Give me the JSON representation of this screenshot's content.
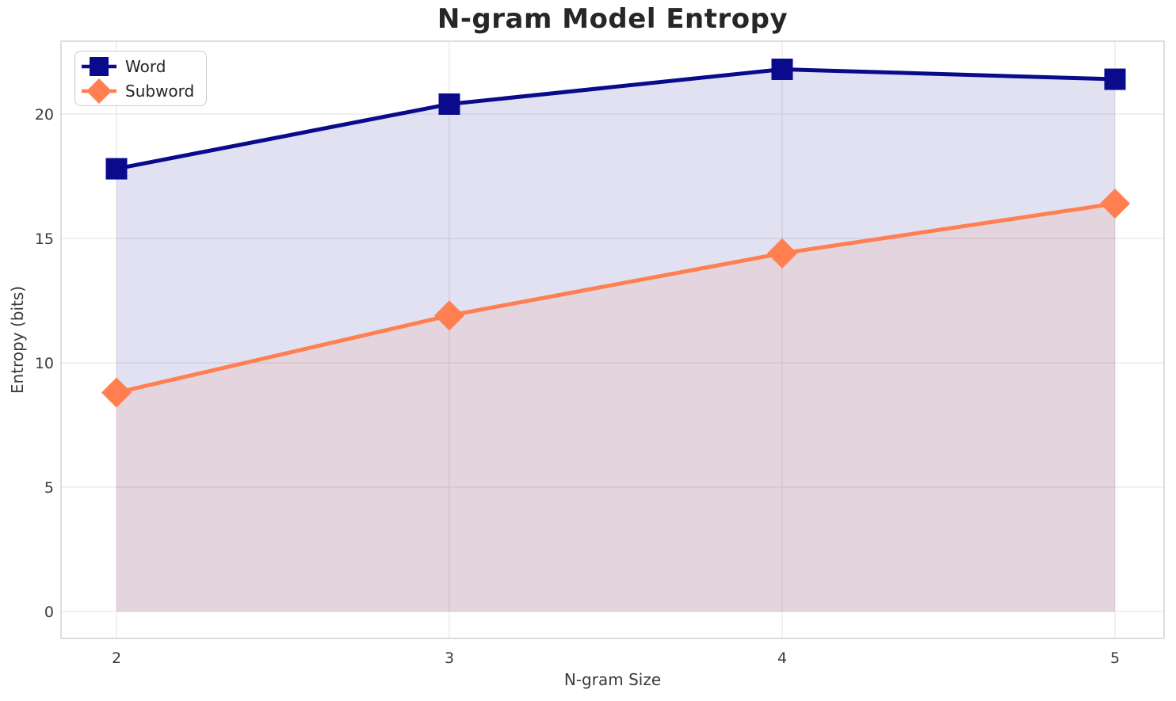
{
  "chart_data": {
    "type": "line",
    "title": "N-gram Model Entropy",
    "xlabel": "N-gram Size",
    "ylabel": "Entropy (bits)",
    "x": [
      2,
      3,
      4,
      5
    ],
    "x_ticks": [
      "2",
      "3",
      "4",
      "5"
    ],
    "y_ticks": [
      0,
      5,
      10,
      15,
      20
    ],
    "xlim": [
      1.83,
      5.15
    ],
    "ylim": [
      -1.1,
      22.9
    ],
    "grid": true,
    "legend_position": "upper left",
    "background_color": "#ffffff",
    "grid_color": "#e8e8e8",
    "spine_color": "#cfcfcf",
    "series": [
      {
        "name": "Word",
        "values": [
          17.8,
          20.4,
          21.8,
          21.4
        ],
        "color": "#0a0a8c",
        "marker": "square",
        "fill_to_zero": true,
        "fill_opacity": 0.12
      },
      {
        "name": "Subword",
        "values": [
          8.8,
          11.9,
          14.4,
          16.4
        ],
        "color": "#ff7f50",
        "marker": "diamond",
        "fill_to_zero": true,
        "fill_opacity": 0.12
      }
    ]
  }
}
